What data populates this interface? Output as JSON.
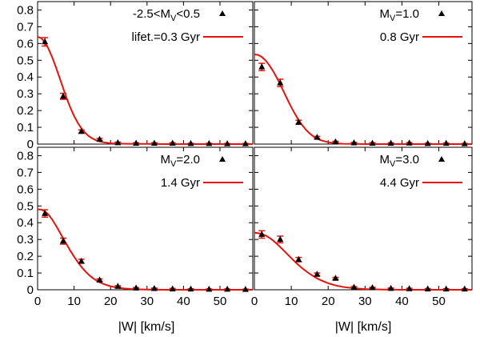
{
  "figure": {
    "xlabel_left": "|W| [km/s]",
    "xlabel_right": "|W| [km/s]"
  },
  "chart_data": [
    {
      "type": "scatter",
      "panel": "top-left",
      "legend": {
        "points_label": {
          "text": "-2.5<M",
          "sub": "V",
          "tail": "<0.5"
        },
        "line_label": "lifet.=0.3 Gyr",
        "placement": "top-right"
      },
      "xlim": [
        0,
        59
      ],
      "ylim": [
        0,
        0.85
      ],
      "xticks": [
        0,
        10,
        20,
        30,
        40,
        50
      ],
      "yticks": [
        0,
        0.1,
        0.2,
        0.3,
        0.4,
        0.5,
        0.6,
        0.7,
        0.8
      ],
      "points": {
        "x": [
          2,
          7,
          12,
          17,
          22,
          27,
          32,
          37,
          42,
          47,
          52,
          57
        ],
        "y": [
          0.61,
          0.285,
          0.075,
          0.028,
          0.008,
          0.005,
          0.005,
          0.005,
          0.003,
          0.003,
          0.002,
          0.002
        ],
        "err": [
          0.025,
          0.018,
          0.01,
          0.006,
          0.004,
          0.003,
          0.003,
          0.003,
          0.002,
          0.002,
          0.002,
          0.002
        ]
      },
      "model": {
        "x": [
          0,
          1,
          2,
          3,
          4,
          5,
          6,
          7,
          8,
          9,
          10,
          11,
          12,
          13,
          14,
          15,
          16,
          17,
          18,
          20,
          22,
          24,
          27,
          30,
          35,
          40,
          45,
          50,
          55,
          59
        ],
        "y": [
          0.64,
          0.632,
          0.608,
          0.568,
          0.518,
          0.46,
          0.397,
          0.334,
          0.272,
          0.216,
          0.168,
          0.127,
          0.094,
          0.068,
          0.048,
          0.034,
          0.023,
          0.016,
          0.011,
          0.005,
          0.003,
          0.002,
          0.001,
          0.001,
          0,
          0,
          0,
          0,
          0,
          0
        ]
      }
    },
    {
      "type": "scatter",
      "panel": "top-right",
      "legend": {
        "points_label": {
          "text": "M",
          "sub": "V",
          "tail": "=1.0"
        },
        "line_label": "0.8 Gyr",
        "placement": "top-right"
      },
      "xlim": [
        0,
        59
      ],
      "ylim": [
        0,
        0.85
      ],
      "xticks": [
        0,
        10,
        20,
        30,
        40,
        50
      ],
      "yticks": [
        0,
        0.1,
        0.2,
        0.3,
        0.4,
        0.5,
        0.6,
        0.7,
        0.8
      ],
      "points": {
        "x": [
          2,
          7,
          12,
          17,
          22,
          27,
          32,
          37,
          42,
          47,
          52,
          57
        ],
        "y": [
          0.46,
          0.365,
          0.13,
          0.04,
          0.013,
          0.007,
          0.005,
          0.005,
          0.006,
          0.003,
          0.004,
          0.002
        ],
        "err": [
          0.022,
          0.022,
          0.012,
          0.006,
          0.004,
          0.003,
          0.003,
          0.003,
          0.003,
          0.002,
          0.002,
          0.002
        ]
      },
      "model": {
        "x": [
          0,
          1,
          2,
          3,
          4,
          5,
          6,
          7,
          8,
          9,
          10,
          11,
          12,
          13,
          14,
          15,
          16,
          17,
          18,
          20,
          22,
          24,
          27,
          30,
          35,
          40,
          45,
          50,
          55,
          59
        ],
        "y": [
          0.535,
          0.532,
          0.52,
          0.5,
          0.472,
          0.438,
          0.399,
          0.356,
          0.31,
          0.264,
          0.22,
          0.18,
          0.143,
          0.112,
          0.085,
          0.063,
          0.046,
          0.033,
          0.023,
          0.011,
          0.005,
          0.002,
          0.001,
          0,
          0,
          0,
          0,
          0,
          0,
          0
        ]
      }
    },
    {
      "type": "scatter",
      "panel": "bottom-left",
      "legend": {
        "points_label": {
          "text": "M",
          "sub": "V",
          "tail": "=2.0"
        },
        "line_label": "1.4 Gyr",
        "placement": "top-right"
      },
      "xlim": [
        0,
        59
      ],
      "ylim": [
        0,
        0.85
      ],
      "xticks": [
        0,
        10,
        20,
        30,
        40,
        50
      ],
      "yticks": [
        0,
        0.1,
        0.2,
        0.3,
        0.4,
        0.5,
        0.6,
        0.7,
        0.8
      ],
      "points": {
        "x": [
          2,
          7,
          12,
          17,
          22,
          27,
          32,
          37,
          42,
          47,
          52,
          57
        ],
        "y": [
          0.455,
          0.29,
          0.17,
          0.058,
          0.02,
          0.01,
          0.007,
          0.005,
          0.004,
          0.003,
          0.003,
          0.002
        ],
        "err": [
          0.022,
          0.018,
          0.012,
          0.007,
          0.004,
          0.003,
          0.003,
          0.003,
          0.002,
          0.002,
          0.002,
          0.002
        ]
      },
      "model": {
        "x": [
          0,
          1,
          2,
          3,
          4,
          5,
          6,
          7,
          8,
          9,
          10,
          11,
          12,
          13,
          14,
          15,
          16,
          17,
          18,
          20,
          22,
          24,
          27,
          30,
          35,
          40,
          45,
          50,
          55,
          59
        ],
        "y": [
          0.48,
          0.478,
          0.468,
          0.448,
          0.419,
          0.384,
          0.346,
          0.307,
          0.269,
          0.232,
          0.198,
          0.166,
          0.137,
          0.112,
          0.09,
          0.072,
          0.057,
          0.045,
          0.035,
          0.021,
          0.012,
          0.007,
          0.003,
          0.001,
          0,
          0,
          0,
          0,
          0,
          0
        ]
      }
    },
    {
      "type": "scatter",
      "panel": "bottom-right",
      "legend": {
        "points_label": {
          "text": "M",
          "sub": "V",
          "tail": "=3.0"
        },
        "line_label": "4.4 Gyr",
        "placement": "top-right"
      },
      "xlim": [
        0,
        59
      ],
      "ylim": [
        0,
        0.85
      ],
      "xticks": [
        0,
        10,
        20,
        30,
        40,
        50
      ],
      "yticks": [
        0,
        0.1,
        0.2,
        0.3,
        0.4,
        0.5,
        0.6,
        0.7,
        0.8
      ],
      "points": {
        "x": [
          2,
          7,
          12,
          17,
          22,
          27,
          32,
          37,
          42,
          47,
          52,
          57
        ],
        "y": [
          0.33,
          0.3,
          0.18,
          0.092,
          0.068,
          0.015,
          0.012,
          0.008,
          0.006,
          0.005,
          0.004,
          0.004
        ],
        "err": [
          0.022,
          0.02,
          0.013,
          0.008,
          0.006,
          0.004,
          0.003,
          0.003,
          0.003,
          0.002,
          0.002,
          0.002
        ]
      },
      "model": {
        "x": [
          0,
          1,
          2,
          3,
          4,
          5,
          6,
          7,
          8,
          9,
          10,
          11,
          12,
          13,
          14,
          15,
          16,
          17,
          18,
          20,
          22,
          24,
          27,
          30,
          35,
          40,
          45,
          50,
          55,
          59
        ],
        "y": [
          0.34,
          0.338,
          0.333,
          0.324,
          0.311,
          0.295,
          0.276,
          0.255,
          0.233,
          0.211,
          0.189,
          0.167,
          0.147,
          0.128,
          0.111,
          0.095,
          0.081,
          0.068,
          0.057,
          0.039,
          0.026,
          0.017,
          0.009,
          0.004,
          0.001,
          0,
          0,
          0,
          0,
          0
        ]
      }
    }
  ]
}
